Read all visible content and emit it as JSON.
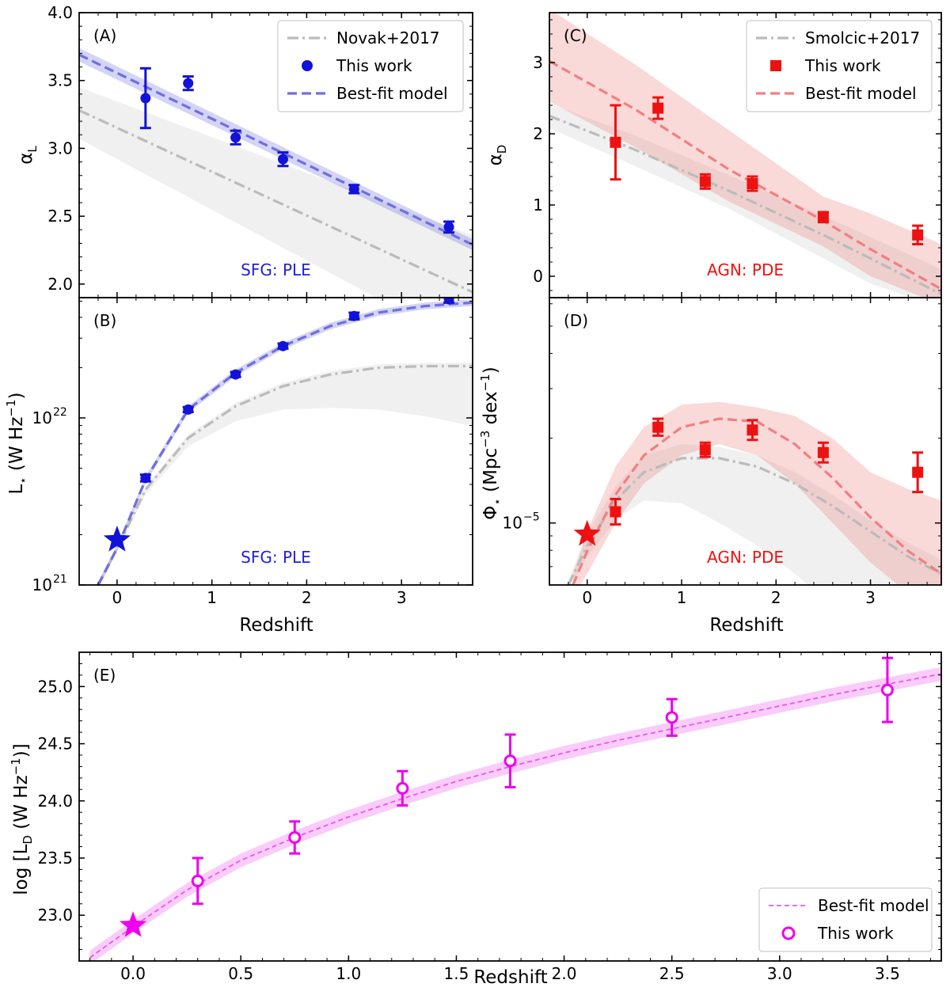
{
  "figure": {
    "common_xlabel": "Redshift"
  },
  "chart_data": [
    {
      "panel": "A",
      "type": "line",
      "label": "(A)",
      "annotation": "SFG: PLE",
      "annotation_color": "#1f1fdd",
      "xlabel": "",
      "ylabel": "α_L",
      "xlim": [
        -0.4,
        3.75
      ],
      "ylim": [
        1.9,
        4.0
      ],
      "yscale": "linear",
      "xticks": [
        0,
        1,
        2,
        3
      ],
      "xtick_labels": [
        "",
        "",
        "",
        ""
      ],
      "yticks": [
        2.0,
        2.5,
        3.0,
        3.5,
        4.0
      ],
      "ytick_labels": [
        "2.0",
        "2.5",
        "3.0",
        "3.5",
        "4.0"
      ],
      "legend": {
        "placement": "top-right",
        "entries": [
          "Novak+2017",
          "This work",
          "Best-fit model"
        ]
      },
      "series": [
        {
          "name": "Novak+2017",
          "style": "dashdot",
          "color": "#bbbbbb",
          "x": [
            -0.4,
            3.75
          ],
          "y": [
            3.28,
            1.94
          ],
          "band_upper": [
            3.45,
            2.36
          ],
          "band_lower": [
            3.07,
            1.52
          ]
        },
        {
          "name": "Best-fit model",
          "style": "dashed",
          "color": "#6f6fe0",
          "x": [
            -0.4,
            3.75
          ],
          "y": [
            3.69,
            2.29
          ],
          "band_upper": [
            3.74,
            2.33
          ],
          "band_lower": [
            3.64,
            2.25
          ]
        },
        {
          "name": "This work",
          "style": "points",
          "marker": "circle",
          "color": "#1212d8",
          "x": [
            0.3,
            0.75,
            1.25,
            1.75,
            2.5,
            3.5
          ],
          "y": [
            3.37,
            3.48,
            3.08,
            2.92,
            2.7,
            2.42
          ],
          "err": [
            0.22,
            0.05,
            0.05,
            0.05,
            0.03,
            0.04
          ]
        }
      ]
    },
    {
      "panel": "B",
      "type": "line",
      "label": "(B)",
      "annotation": "SFG: PLE",
      "annotation_color": "#1f1fdd",
      "xlabel": "Redshift",
      "ylabel": "L_⋆ (W Hz⁻¹)",
      "xlim": [
        -0.4,
        3.75
      ],
      "ylim_log10": [
        21.0,
        22.72
      ],
      "yscale": "log",
      "xticks": [
        0,
        1,
        2,
        3
      ],
      "xtick_labels": [
        "0",
        "1",
        "2",
        "3"
      ],
      "yticks_log10": [
        21,
        22
      ],
      "ytick_labels": [
        "10",
        "10"
      ],
      "ytick_exponents": [
        "21",
        "22"
      ],
      "series": [
        {
          "name": "Novak+2017",
          "style": "dashdot",
          "color": "#bbbbbb",
          "x": [
            -0.2,
            0.0,
            0.3,
            0.75,
            1.25,
            1.75,
            2.25,
            2.75,
            3.25,
            3.75
          ],
          "log10y": [
            21.0,
            21.22,
            21.57,
            21.88,
            22.07,
            22.19,
            22.26,
            22.3,
            22.31,
            22.31
          ],
          "band_upper": [
            21.02,
            21.24,
            21.59,
            21.9,
            22.09,
            22.21,
            22.28,
            22.32,
            22.33,
            22.33
          ],
          "band_lower": [
            20.98,
            21.2,
            21.54,
            21.83,
            21.98,
            22.05,
            22.06,
            22.05,
            22.01,
            21.95
          ]
        },
        {
          "name": "Best-fit model",
          "style": "dashed",
          "color": "#6f6fe0",
          "x": [
            -0.2,
            0.0,
            0.3,
            0.75,
            1.25,
            1.75,
            2.25,
            2.75,
            3.25,
            3.75
          ],
          "log10y": [
            21.0,
            21.22,
            21.63,
            22.05,
            22.27,
            22.43,
            22.55,
            22.63,
            22.67,
            22.69
          ],
          "band_upper": [
            21.02,
            21.24,
            21.65,
            22.07,
            22.29,
            22.45,
            22.57,
            22.65,
            22.69,
            22.71
          ],
          "band_lower": [
            20.98,
            21.2,
            21.61,
            22.03,
            22.25,
            22.41,
            22.53,
            22.61,
            22.65,
            22.67
          ]
        },
        {
          "name": "This work",
          "style": "points",
          "marker": "circle",
          "color": "#1212d8",
          "x": [
            0.3,
            0.75,
            1.25,
            1.75,
            2.5,
            3.5
          ],
          "log10y": [
            21.64,
            22.05,
            22.26,
            22.43,
            22.61,
            22.71
          ],
          "err_log10": [
            0.02,
            0.015,
            0.015,
            0.015,
            0.02,
            0.02
          ]
        },
        {
          "name": "z=0 anchor",
          "style": "star",
          "color": "#1212d8",
          "x": [
            0.0
          ],
          "log10y": [
            21.27
          ]
        }
      ]
    },
    {
      "panel": "C",
      "type": "line",
      "label": "(C)",
      "annotation": "AGN: PDE",
      "annotation_color": "#ee1111",
      "xlabel": "",
      "ylabel": "α_D",
      "xlim": [
        -0.4,
        3.75
      ],
      "ylim": [
        -0.3,
        3.7
      ],
      "yscale": "linear",
      "xticks": [
        0,
        1,
        2,
        3
      ],
      "xtick_labels": [
        "",
        "",
        "",
        ""
      ],
      "yticks": [
        0,
        1,
        2,
        3
      ],
      "ytick_labels": [
        "0",
        "1",
        "2",
        "3"
      ],
      "legend": {
        "placement": "top-right",
        "entries": [
          "Smolcic+2017",
          "This work",
          "Best-fit model"
        ]
      },
      "series": [
        {
          "name": "Smolcic+2017",
          "style": "dashdot",
          "color": "#bbbbbb",
          "x": [
            -0.4,
            0.5,
            1.5,
            2.5,
            3.0,
            3.75
          ],
          "y": [
            2.25,
            1.78,
            1.2,
            0.58,
            0.25,
            -0.25
          ],
          "band_upper": [
            2.42,
            1.98,
            1.42,
            0.85,
            0.55,
            0.1
          ],
          "band_lower": [
            2.08,
            1.55,
            0.95,
            0.25,
            -0.1,
            -0.45
          ]
        },
        {
          "name": "Best-fit model",
          "style": "dashed",
          "color": "#f08080",
          "x": [
            -0.4,
            0.5,
            1.5,
            2.5,
            3.0,
            3.75
          ],
          "y": [
            3.02,
            2.35,
            1.5,
            0.78,
            0.38,
            -0.18
          ],
          "band_upper": [
            3.75,
            2.98,
            2.05,
            1.12,
            0.88,
            0.45
          ],
          "band_lower": [
            2.45,
            1.82,
            1.05,
            0.42,
            0.0,
            -0.4
          ]
        },
        {
          "name": "This work",
          "style": "points",
          "marker": "square",
          "color": "#ee1111",
          "x": [
            0.3,
            0.75,
            1.25,
            1.75,
            2.5,
            3.5
          ],
          "y": [
            1.88,
            2.36,
            1.33,
            1.3,
            0.83,
            0.58
          ],
          "err": [
            0.52,
            0.15,
            0.1,
            0.1,
            0.07,
            0.13
          ]
        }
      ]
    },
    {
      "panel": "D",
      "type": "line",
      "label": "(D)",
      "annotation": "AGN: PDE",
      "annotation_color": "#ee1111",
      "xlabel": "Redshift",
      "ylabel": "Φ_⋆ (Mpc⁻³ dex⁻¹)",
      "xlim": [
        -0.4,
        3.75
      ],
      "ylim_log10": [
        -5.22,
        -4.2
      ],
      "yscale": "log",
      "xticks": [
        0,
        1,
        2,
        3
      ],
      "xtick_labels": [
        "0",
        "1",
        "2",
        "3"
      ],
      "yticks_log10": [
        -5
      ],
      "ytick_labels": [
        "10"
      ],
      "ytick_exponents": [
        "−5"
      ],
      "series": [
        {
          "name": "Smolcic+2017",
          "style": "dashdot",
          "color": "#bbbbbb",
          "x": [
            -0.2,
            0.0,
            0.3,
            0.6,
            1.0,
            1.4,
            1.8,
            2.2,
            2.6,
            3.0,
            3.4,
            3.75
          ],
          "log10y": [
            -5.22,
            -5.08,
            -4.92,
            -4.82,
            -4.77,
            -4.77,
            -4.8,
            -4.86,
            -4.94,
            -5.03,
            -5.12,
            -5.18
          ],
          "band_upper": [
            -5.2,
            -5.04,
            -4.87,
            -4.76,
            -4.72,
            -4.73,
            -4.76,
            -4.82,
            -4.9,
            -4.99,
            -5.07,
            -5.13
          ],
          "band_lower": [
            -5.24,
            -5.12,
            -4.99,
            -4.92,
            -4.93,
            -5.0,
            -5.08,
            -5.18,
            -5.3,
            -5.4,
            -5.45,
            -5.5
          ]
        },
        {
          "name": "Best-fit model",
          "style": "dashed",
          "color": "#f08080",
          "x": [
            -0.15,
            0.0,
            0.3,
            0.6,
            1.0,
            1.4,
            1.8,
            2.2,
            2.6,
            3.0,
            3.4,
            3.75
          ],
          "log10y": [
            -5.22,
            -5.1,
            -4.9,
            -4.76,
            -4.66,
            -4.63,
            -4.64,
            -4.72,
            -4.84,
            -4.98,
            -5.1,
            -5.18
          ],
          "band_upper": [
            -5.18,
            -5.03,
            -4.8,
            -4.66,
            -4.58,
            -4.57,
            -4.59,
            -4.62,
            -4.7,
            -4.82,
            -4.88,
            -4.92
          ],
          "band_lower": [
            -5.26,
            -5.18,
            -5.0,
            -4.86,
            -4.76,
            -4.72,
            -4.76,
            -4.86,
            -5.0,
            -5.14,
            -5.25,
            -5.3
          ]
        },
        {
          "name": "This work",
          "style": "points",
          "marker": "square",
          "color": "#ee1111",
          "x": [
            0.3,
            0.75,
            1.25,
            1.75,
            2.5,
            3.5
          ],
          "log10y": [
            -4.96,
            -4.66,
            -4.74,
            -4.67,
            -4.75,
            -4.82
          ],
          "err_log10": [
            0.045,
            0.03,
            0.025,
            0.035,
            0.035,
            0.07
          ]
        },
        {
          "name": "z=0 anchor",
          "style": "star",
          "color": "#ee1111",
          "x": [
            0.0
          ],
          "log10y": [
            -5.04
          ]
        }
      ]
    },
    {
      "panel": "E",
      "type": "line",
      "label": "(E)",
      "xlabel": "Redshift",
      "ylabel": "log [L_D (W Hz⁻¹)]",
      "xlim": [
        -0.25,
        3.75
      ],
      "ylim": [
        22.6,
        25.3
      ],
      "yscale": "linear",
      "xticks": [
        0.0,
        0.5,
        1.0,
        1.5,
        2.0,
        2.5,
        3.0,
        3.5
      ],
      "xtick_labels": [
        "0.0",
        "0.5",
        "1.0",
        "1.5",
        "2.0",
        "2.5",
        "3.0",
        "3.5"
      ],
      "yticks": [
        23.0,
        23.5,
        24.0,
        24.5,
        25.0
      ],
      "ytick_labels": [
        "23.0",
        "23.5",
        "24.0",
        "24.5",
        "25.0"
      ],
      "legend": {
        "placement": "bottom-right",
        "entries": [
          "Best-fit model",
          "This work"
        ]
      },
      "series": [
        {
          "name": "Best-fit model",
          "style": "dashed",
          "color": "#ee55ee",
          "x": [
            -0.2,
            0.0,
            0.25,
            0.5,
            0.75,
            1.0,
            1.25,
            1.5,
            1.75,
            2.0,
            2.25,
            2.5,
            2.75,
            3.0,
            3.25,
            3.5,
            3.75
          ],
          "y": [
            22.63,
            22.9,
            23.22,
            23.48,
            23.68,
            23.86,
            24.02,
            24.17,
            24.3,
            24.42,
            24.53,
            24.63,
            24.73,
            24.83,
            24.93,
            25.02,
            25.11
          ],
          "band_half_width": 0.06
        },
        {
          "name": "This work",
          "style": "points",
          "marker": "open-circle",
          "color": "#ee00ee",
          "x": [
            0.3,
            0.75,
            1.25,
            1.75,
            2.5,
            3.5
          ],
          "y": [
            23.3,
            23.68,
            24.11,
            24.35,
            24.73,
            24.97
          ],
          "err": [
            0.2,
            0.14,
            0.15,
            0.23,
            0.16,
            0.28
          ]
        },
        {
          "name": "z=0 anchor",
          "style": "star",
          "color": "#ee00ee",
          "x": [
            0.0
          ],
          "y": [
            22.91
          ]
        }
      ]
    }
  ]
}
